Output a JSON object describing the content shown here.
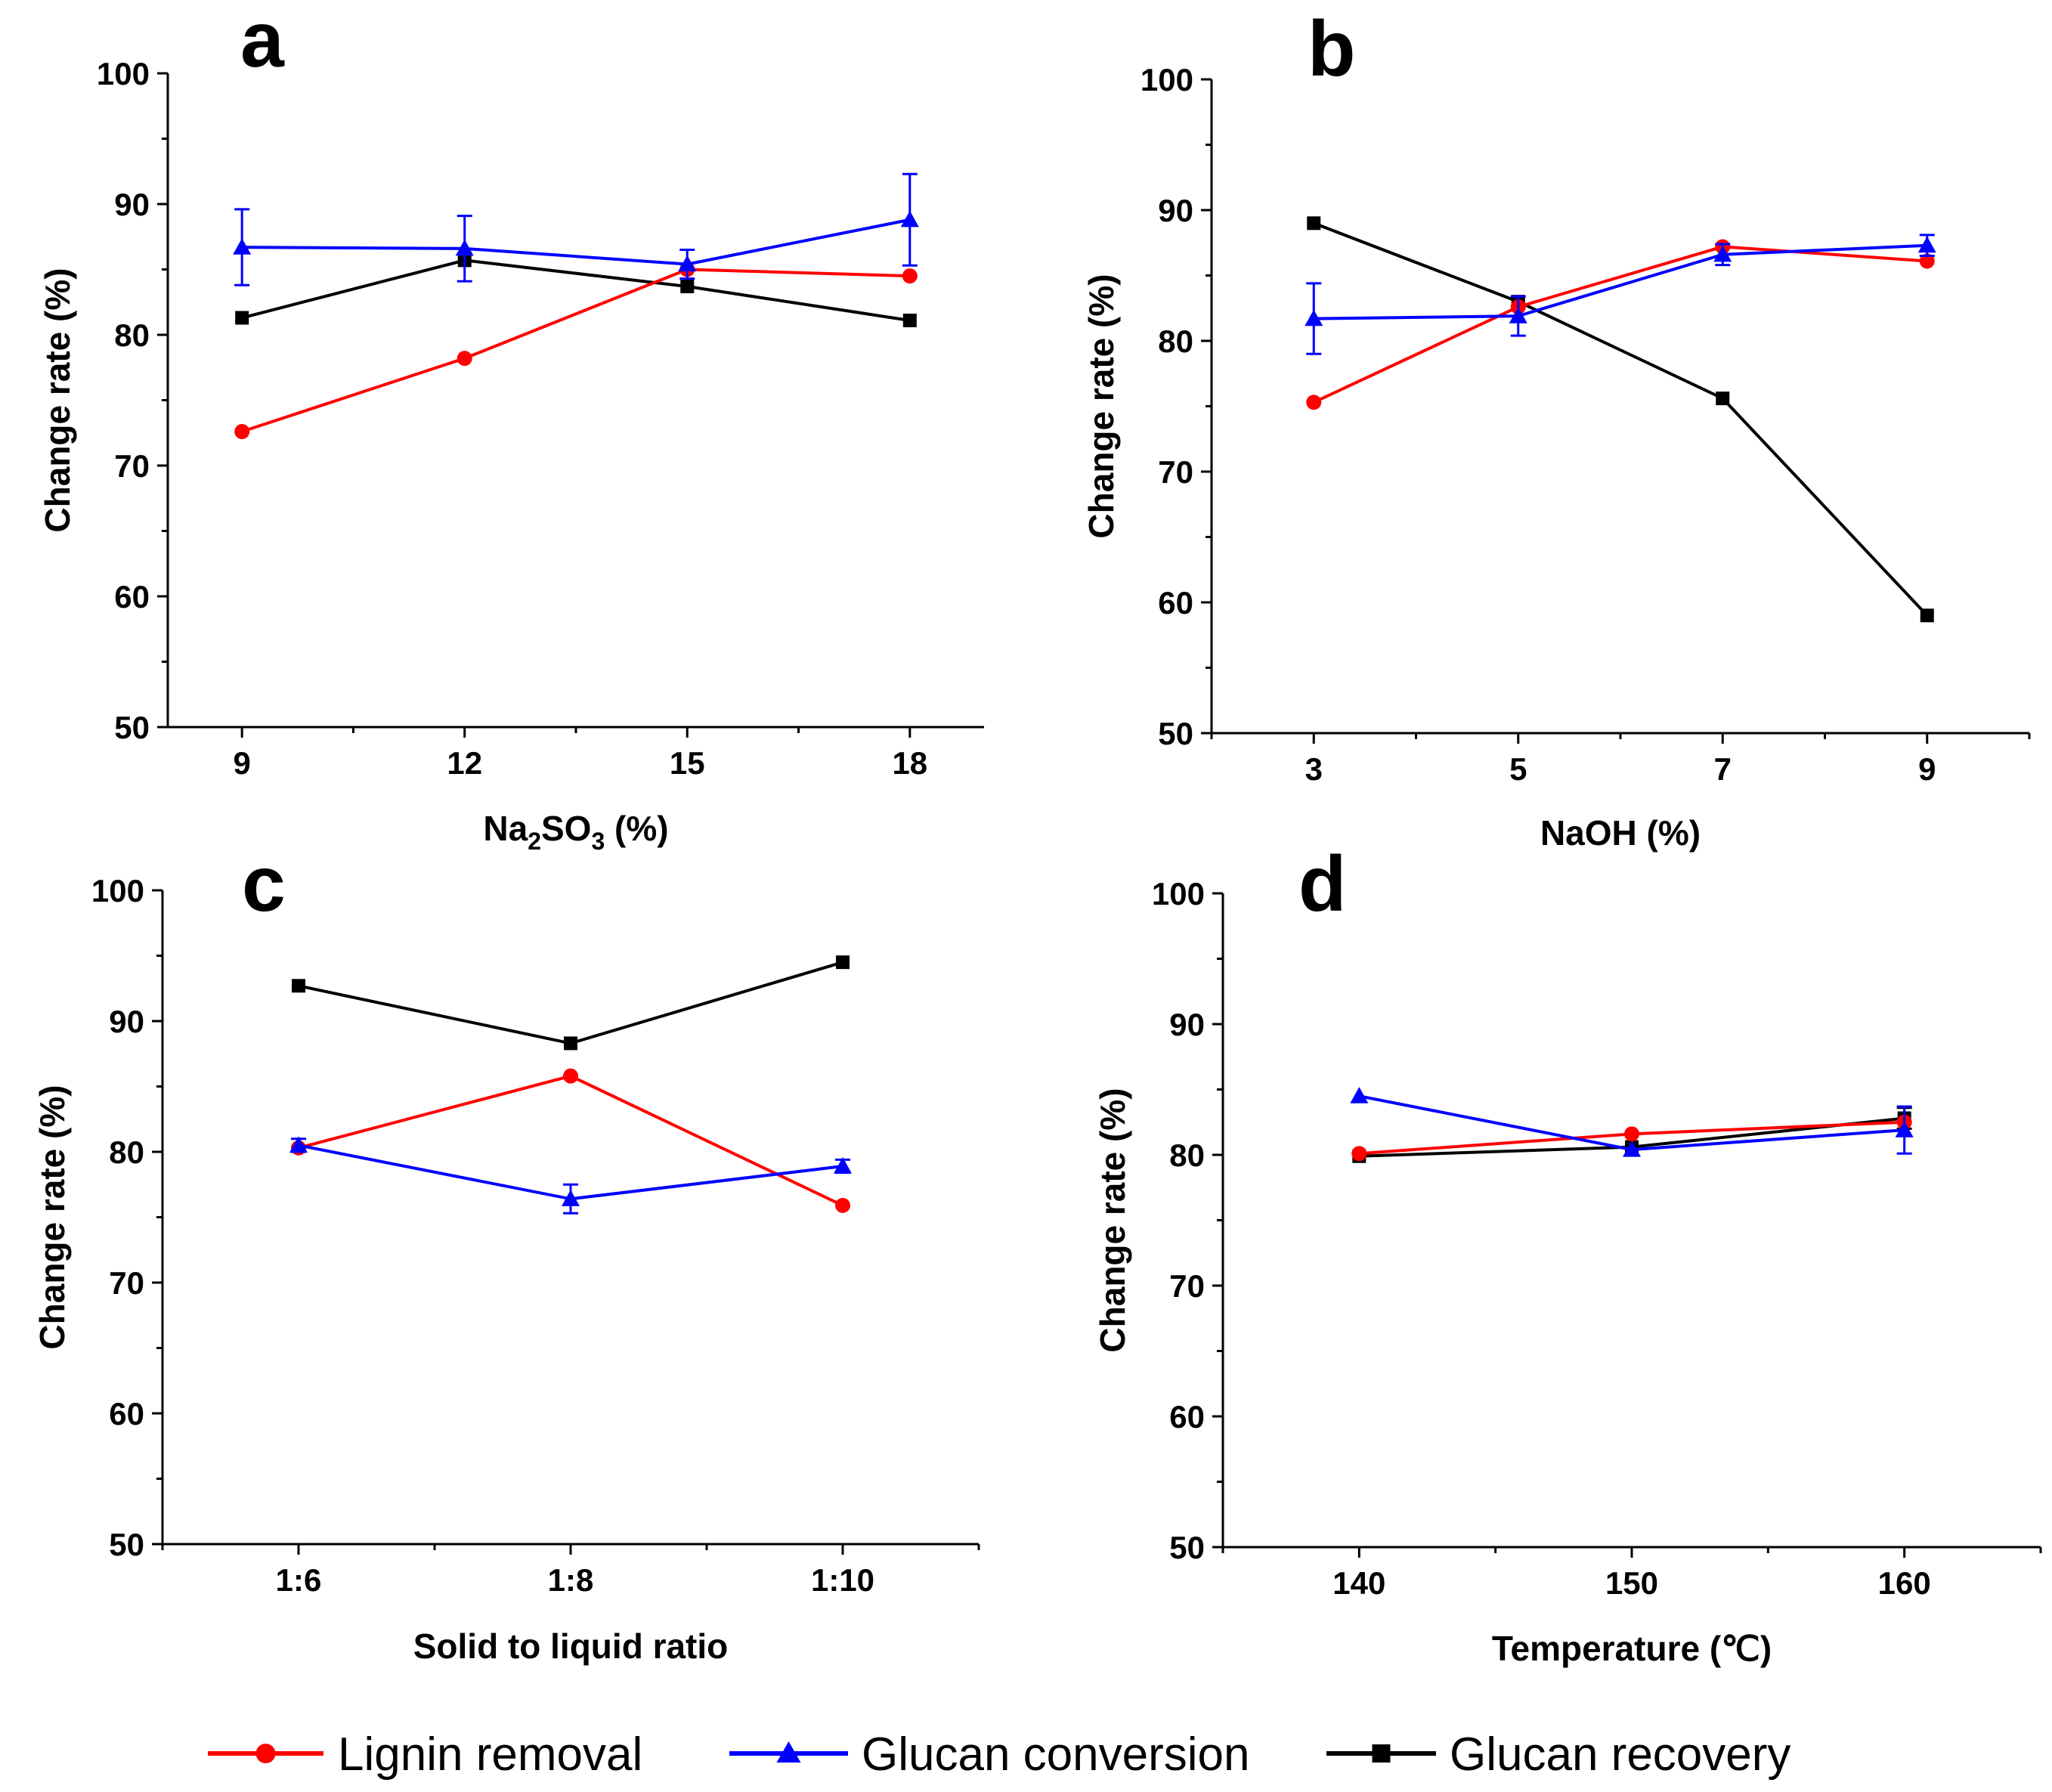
{
  "chart_data": [
    {
      "type": "line",
      "panel": "a",
      "xlabel_main": "Na",
      "xlabel_sub1": "2",
      "xlabel_mid": "SO",
      "xlabel_sub2": "3",
      "xlabel_end": " (%)",
      "ylabel": "Change rate (%)",
      "x": [
        9,
        12,
        15,
        18
      ],
      "xticks": [
        "9",
        "12",
        "15",
        "18"
      ],
      "xlim": [
        8,
        19
      ],
      "ylim": [
        50,
        100
      ],
      "yticks": [
        "50",
        "60",
        "70",
        "80",
        "90",
        "100"
      ],
      "series": [
        {
          "name": "Lignin removal",
          "values": [
            72.6,
            78.2,
            85.0,
            84.5
          ],
          "errors": [
            0,
            0,
            0,
            0
          ]
        },
        {
          "name": "Glucan conversion",
          "values": [
            86.7,
            86.6,
            85.4,
            88.8
          ],
          "errors": [
            2.9,
            2.5,
            1.1,
            3.5
          ]
        },
        {
          "name": "Glucan recovery",
          "values": [
            81.3,
            85.7,
            83.7,
            81.1
          ],
          "errors": [
            0,
            0,
            0,
            0
          ]
        }
      ]
    },
    {
      "type": "line",
      "panel": "b",
      "xlabel": "NaOH (%)",
      "ylabel": "Change rate (%)",
      "x": [
        3,
        5,
        7,
        9
      ],
      "xticks": [
        "3",
        "5",
        "7",
        "9"
      ],
      "xlim": [
        2,
        10
      ],
      "ylim": [
        50,
        100
      ],
      "yticks": [
        "50",
        "60",
        "70",
        "80",
        "90",
        "100"
      ],
      "series": [
        {
          "name": "Lignin removal",
          "values": [
            75.3,
            82.6,
            87.2,
            86.1
          ],
          "errors": [
            0,
            0,
            0,
            0
          ]
        },
        {
          "name": "Glucan conversion",
          "values": [
            81.7,
            81.9,
            86.6,
            87.3
          ],
          "errors": [
            2.7,
            1.5,
            0.8,
            0.8
          ]
        },
        {
          "name": "Glucan recovery",
          "values": [
            89.0,
            83.0,
            75.6,
            59.0
          ],
          "errors": [
            0,
            0,
            0,
            0
          ]
        }
      ]
    },
    {
      "type": "line",
      "panel": "c",
      "xlabel": "Solid to liquid ratio",
      "ylabel": "Change rate (%)",
      "x": [
        0,
        1,
        2
      ],
      "xticks": [
        "1:6",
        "1:8",
        "1:10"
      ],
      "xlim": [
        -0.5,
        2.5
      ],
      "ylim": [
        50,
        100
      ],
      "yticks": [
        "50",
        "60",
        "70",
        "80",
        "90",
        "100"
      ],
      "series": [
        {
          "name": "Lignin removal",
          "values": [
            80.3,
            85.8,
            75.9
          ],
          "errors": [
            0,
            0,
            0
          ]
        },
        {
          "name": "Glucan conversion",
          "values": [
            80.5,
            76.4,
            78.9
          ],
          "errors": [
            0.5,
            1.1,
            0.5
          ]
        },
        {
          "name": "Glucan recovery",
          "values": [
            92.7,
            88.3,
            94.5
          ],
          "errors": [
            0,
            0,
            0
          ]
        }
      ]
    },
    {
      "type": "line",
      "panel": "d",
      "xlabel": "Temperature (℃)",
      "ylabel": "Change rate (%)",
      "x": [
        140,
        150,
        160
      ],
      "xticks": [
        "140",
        "150",
        "160"
      ],
      "xlim": [
        135,
        165
      ],
      "ylim": [
        50,
        100
      ],
      "yticks": [
        "50",
        "60",
        "70",
        "80",
        "90",
        "100"
      ],
      "series": [
        {
          "name": "Lignin removal",
          "values": [
            80.1,
            81.6,
            82.5
          ],
          "errors": [
            0,
            0,
            0
          ]
        },
        {
          "name": "Glucan conversion",
          "values": [
            84.5,
            80.4,
            81.9
          ],
          "errors": [
            0,
            0,
            1.8
          ]
        },
        {
          "name": "Glucan recovery",
          "values": [
            79.9,
            80.6,
            82.8
          ],
          "errors": [
            0,
            0,
            0.8
          ]
        }
      ]
    }
  ],
  "legend": [
    {
      "label": "Lignin removal",
      "color": "#ff0000",
      "marker": "circle"
    },
    {
      "label": "Glucan conversion",
      "color": "#0000ff",
      "marker": "triangle"
    },
    {
      "label": "Glucan recovery",
      "color": "#000000",
      "marker": "square"
    }
  ]
}
